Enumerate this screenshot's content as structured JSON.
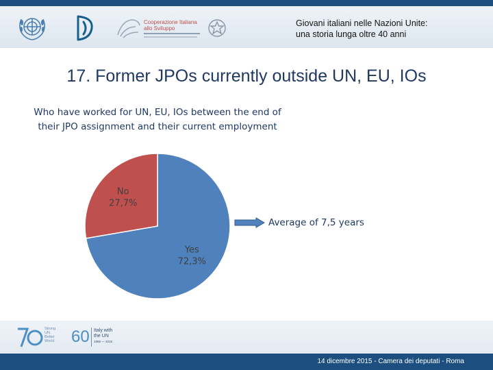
{
  "header": {
    "title_line1": "Giovani italiani nelle Nazioni Unite:",
    "title_line2": "una storia lunga oltre 40 anni",
    "logo_text_cooperazione_1": "Cooperazione Italiana",
    "logo_text_cooperazione_2": "allo Sviluppo"
  },
  "slide": {
    "title": "17. Former JPOs currently outside UN, EU, IOs",
    "subtitle_line1": "Who have worked for UN, EU, IOs between the end of",
    "subtitle_line2": "their JPO assignment and their current employment",
    "note": "Average of 7,5 years"
  },
  "chart_data": {
    "type": "pie",
    "categories": [
      "Yes",
      "No"
    ],
    "values": [
      72.3,
      27.7
    ],
    "labels": [
      {
        "name": "Yes",
        "value": "72,3%"
      },
      {
        "name": "No",
        "value": "27,7%"
      }
    ],
    "colors": [
      "#4f81bd",
      "#c0504d"
    ]
  },
  "footer": {
    "logo_70_caption_1": "Strong",
    "logo_70_caption_2": "UN.",
    "logo_70_caption_3": "Better",
    "logo_70_caption_4": "World.",
    "logo_60_line1": "Italy with",
    "logo_60_line2": "the UN",
    "logo_60_years": "1955 — 2015",
    "text": "14 dicembre 2015 - Camera dei deputati - Roma"
  }
}
